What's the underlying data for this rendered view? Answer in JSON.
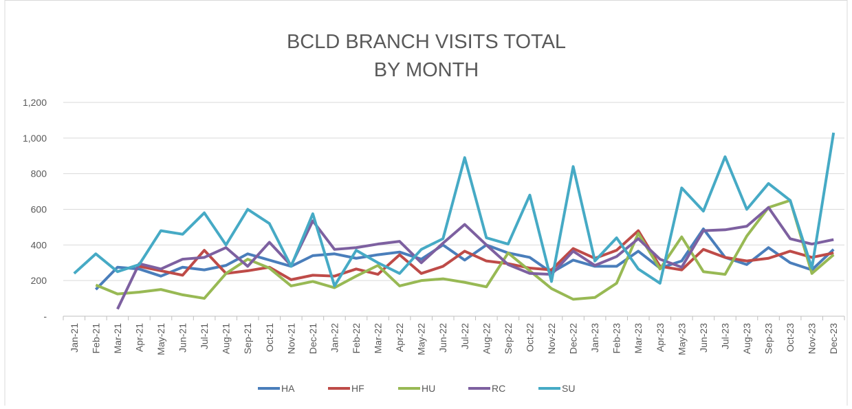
{
  "chart_data": {
    "type": "line",
    "title": "BCLD BRANCH VISITS TOTAL",
    "subtitle": "BY MONTH",
    "categories": [
      "Jan-21",
      "Feb-21",
      "Mar-21",
      "Apr-21",
      "May-21",
      "Jun-21",
      "Jul-21",
      "Aug-21",
      "Sep-21",
      "Oct-21",
      "Nov-21",
      "Dec-21",
      "Jan-22",
      "Feb-22",
      "Mar-22",
      "Apr-22",
      "May-22",
      "Jun-22",
      "Jul-22",
      "Aug-22",
      "Sep-22",
      "Oct-22",
      "Nov-22",
      "Dec-22",
      "Jan-23",
      "Feb-23",
      "Mar-23",
      "Apr-23",
      "May-23",
      "Jun-23",
      "Jul-23",
      "Aug-23",
      "Sep-23",
      "Oct-23",
      "Nov-23",
      "Dec-23"
    ],
    "series": [
      {
        "name": "HA",
        "color": "#4a7ebb",
        "values": [
          null,
          150,
          275,
          265,
          225,
          275,
          260,
          285,
          350,
          315,
          280,
          340,
          350,
          325,
          345,
          360,
          320,
          400,
          315,
          400,
          355,
          330,
          245,
          315,
          280,
          280,
          365,
          270,
          310,
          490,
          330,
          290,
          385,
          300,
          260,
          375
        ]
      },
      {
        "name": "HF",
        "color": "#be4b48",
        "values": [
          null,
          null,
          null,
          280,
          255,
          230,
          370,
          240,
          255,
          275,
          205,
          230,
          225,
          265,
          235,
          345,
          240,
          280,
          365,
          310,
          295,
          270,
          260,
          380,
          325,
          370,
          480,
          280,
          260,
          375,
          330,
          310,
          325,
          365,
          330,
          355
        ]
      },
      {
        "name": "HU",
        "color": "#98b954",
        "values": [
          null,
          175,
          125,
          135,
          150,
          120,
          100,
          240,
          320,
          270,
          170,
          195,
          160,
          225,
          285,
          170,
          200,
          210,
          190,
          165,
          355,
          255,
          155,
          95,
          105,
          185,
          465,
          265,
          445,
          250,
          235,
          450,
          610,
          650,
          240,
          345
        ]
      },
      {
        "name": "RC",
        "color": "#7d60a0",
        "values": [
          null,
          null,
          40,
          295,
          265,
          320,
          330,
          385,
          280,
          415,
          285,
          535,
          375,
          385,
          405,
          420,
          300,
          410,
          515,
          400,
          290,
          240,
          235,
          365,
          285,
          335,
          435,
          320,
          275,
          480,
          485,
          505,
          610,
          435,
          405,
          430
        ]
      },
      {
        "name": "SU",
        "color": "#46aac5",
        "values": [
          240,
          350,
          250,
          290,
          480,
          460,
          580,
          400,
          600,
          520,
          280,
          575,
          170,
          370,
          300,
          240,
          375,
          435,
          890,
          440,
          405,
          680,
          195,
          840,
          310,
          440,
          265,
          185,
          720,
          590,
          895,
          600,
          745,
          650,
          270,
          1030
        ]
      }
    ],
    "ylim": [
      0,
      1200
    ],
    "yticks": [
      {
        "value": 0,
        "label": "-"
      },
      200,
      400,
      600,
      800,
      {
        "value": 1000,
        "label": "1,000"
      },
      {
        "value": 1200,
        "label": "1,200"
      }
    ],
    "grid": true,
    "legend": "bottom"
  }
}
